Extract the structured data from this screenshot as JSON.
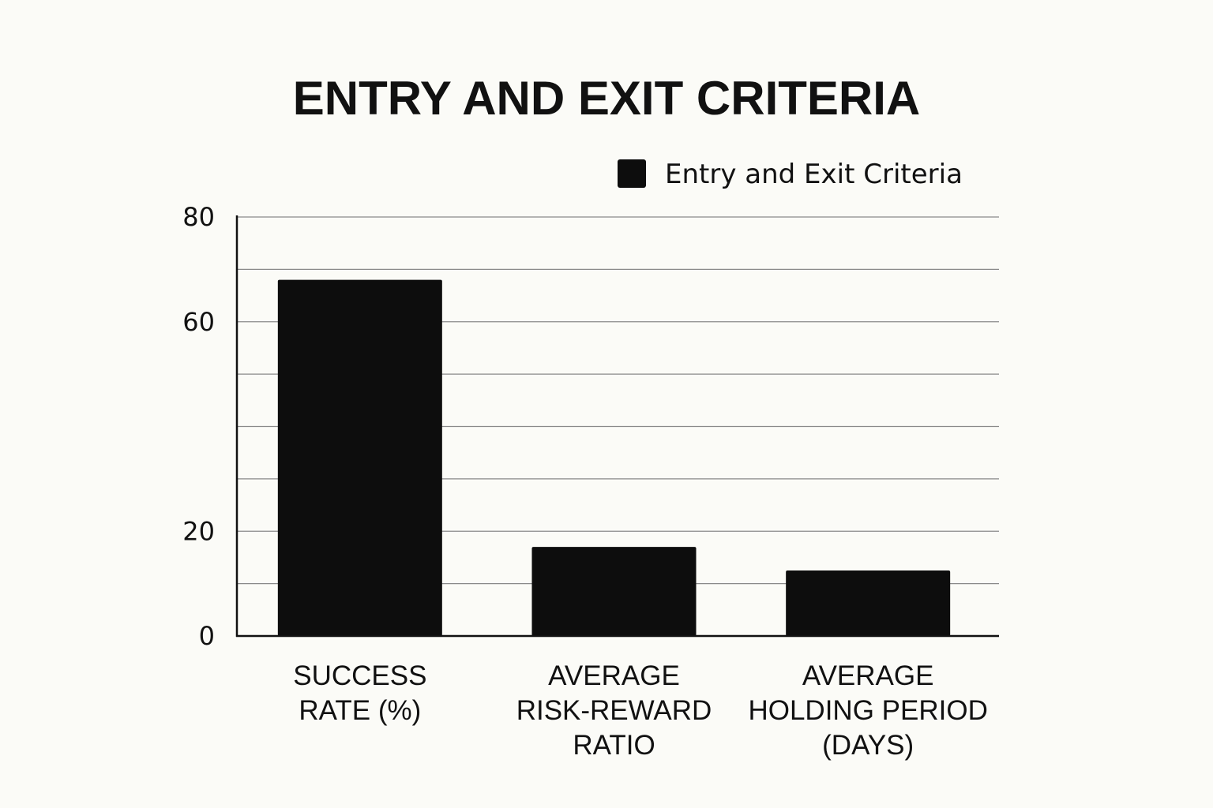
{
  "chart_data": {
    "type": "bar",
    "title": "ENTRY AND EXIT CRITERIA",
    "categories": [
      [
        "SUCCESS",
        "RATE (%)"
      ],
      [
        "AVERAGE",
        "RISK-REWARD",
        "RATIO"
      ],
      [
        "AVERAGE",
        "HOLDING PERIOD",
        "(DAYS)"
      ]
    ],
    "series": [
      {
        "name": "Entry and Exit Criteria",
        "values": [
          68,
          17,
          12.5
        ],
        "color": "#0d0d0d"
      }
    ],
    "ylim": [
      0,
      80
    ],
    "y_ticks": [
      0,
      20,
      60,
      80
    ],
    "grid": true,
    "legend_position": "top-right",
    "xlabel": "",
    "ylabel": ""
  }
}
